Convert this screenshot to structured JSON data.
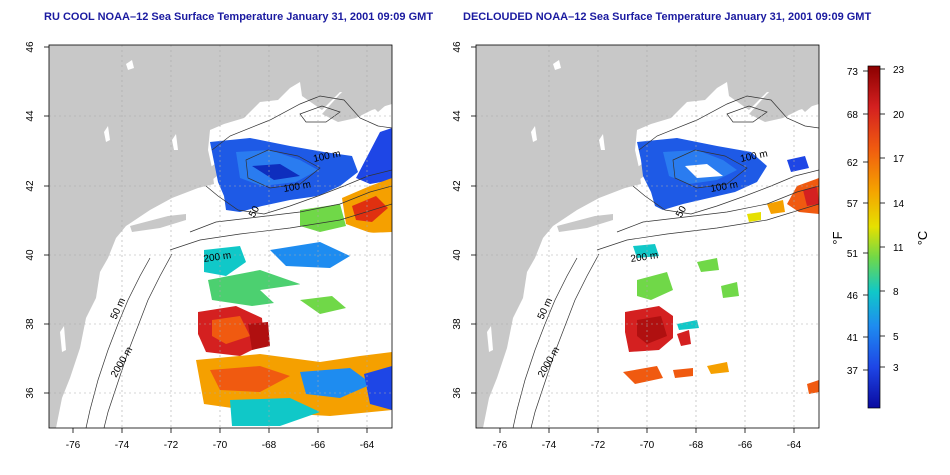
{
  "panels": [
    {
      "title": "RU COOL NOAA–12 Sea Surface Temperature January 31, 2001 09:09 GMT",
      "x_ticks": [
        "-76",
        "-74",
        "-72",
        "-70",
        "-68",
        "-66",
        "-64"
      ],
      "y_ticks": [
        "36",
        "38",
        "40",
        "42",
        "44",
        "46"
      ],
      "contour_labels": [
        "100 m",
        "100 m",
        "50",
        "200 m",
        "50 m",
        "2000 m"
      ]
    },
    {
      "title": "DECLOUDED NOAA–12 Sea Surface Temperature January 31, 2001 09:09 GMT",
      "x_ticks": [
        "-76",
        "-74",
        "-72",
        "-70",
        "-68",
        "-66",
        "-64"
      ],
      "y_ticks": [
        "36",
        "38",
        "40",
        "42",
        "44",
        "46"
      ],
      "contour_labels": [
        "100 m",
        "100 m",
        "50",
        "200 m",
        "50 m",
        "2000 m"
      ]
    }
  ],
  "colorbar": {
    "fahrenheit_label": "°F",
    "celsius_label": "°C",
    "fahrenheit_ticks": [
      "73",
      "68",
      "62",
      "57",
      "51",
      "46",
      "41",
      "37"
    ],
    "celsius_ticks": [
      "23",
      "20",
      "17",
      "14",
      "11",
      "8",
      "5",
      "3"
    ],
    "colors": [
      "#8b0000",
      "#d42020",
      "#f05a10",
      "#f5a000",
      "#e6e000",
      "#70d848",
      "#10c8c8",
      "#1e8cf0",
      "#1e46e6",
      "#0a0aa0"
    ]
  },
  "colors": {
    "land": "#c8c8c8",
    "ocean": "#ffffff",
    "title_text": "#1a1aa0",
    "grid": "#aaaaaa"
  }
}
